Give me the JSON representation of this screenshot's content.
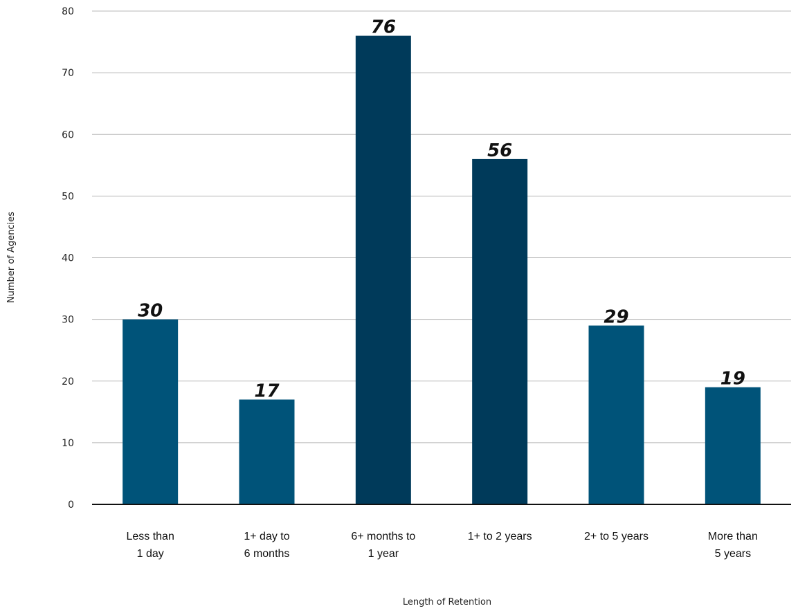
{
  "chart_data": {
    "type": "bar",
    "title": "",
    "xlabel": "Length of Retention",
    "ylabel": "Number of Agencies",
    "ylim": [
      0,
      80
    ],
    "yticks": [
      0,
      10,
      20,
      30,
      40,
      50,
      60,
      70,
      80
    ],
    "grid": true,
    "categories": [
      [
        "Less than",
        "1 day"
      ],
      [
        "1+ day to",
        "6 months"
      ],
      [
        "6+ months to",
        "1 year"
      ],
      [
        "1+ to 2 years"
      ],
      [
        "2+ to 5 years"
      ],
      [
        "More than",
        "5 years"
      ]
    ],
    "values": [
      30,
      17,
      76,
      56,
      29,
      19
    ],
    "colors": [
      "#005379",
      "#005379",
      "#003a5a",
      "#003a5a",
      "#005379",
      "#005379"
    ]
  }
}
